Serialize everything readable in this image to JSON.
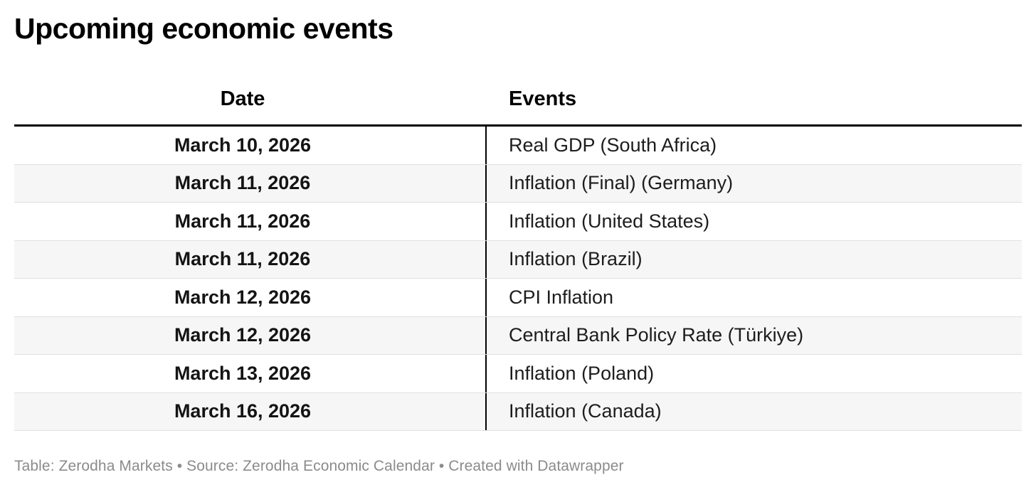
{
  "title": "Upcoming economic events",
  "chart_data": {
    "type": "table",
    "title": "Upcoming economic events",
    "columns": [
      "Date",
      "Events"
    ],
    "rows": [
      {
        "date": "March 10, 2026",
        "event": "Real GDP (South Africa)"
      },
      {
        "date": "March 11, 2026",
        "event": "Inflation (Final) (Germany)"
      },
      {
        "date": "March 11, 2026",
        "event": "Inflation (United States)"
      },
      {
        "date": "March 11, 2026",
        "event": "Inflation (Brazil)"
      },
      {
        "date": "March 12, 2026",
        "event": "CPI Inflation"
      },
      {
        "date": "March 12, 2026",
        "event": "Central Bank Policy Rate (Türkiye)"
      },
      {
        "date": "March 13, 2026",
        "event": "Inflation (Poland)"
      },
      {
        "date": "March 16, 2026",
        "event": "Inflation (Canada)"
      }
    ],
    "layout": {
      "header_rule": "thick-black-bottom",
      "column_divider": "vertical-black-line",
      "row_striping": "alternate-light-gray",
      "date_align": "center",
      "events_align": "left"
    }
  },
  "footer": {
    "text": "Table: Zerodha Markets • Source: Zerodha Economic Calendar • Created with Datawrapper"
  },
  "colors": {
    "title_text": "#000000",
    "body_text": "#1d1d1d",
    "alt_row_background": "#f6f6f6",
    "row_separator": "#e0e0e0",
    "header_rule": "#000000",
    "column_divider": "#000000",
    "footer_text": "#8b8b8b",
    "page_background": "#ffffff"
  }
}
